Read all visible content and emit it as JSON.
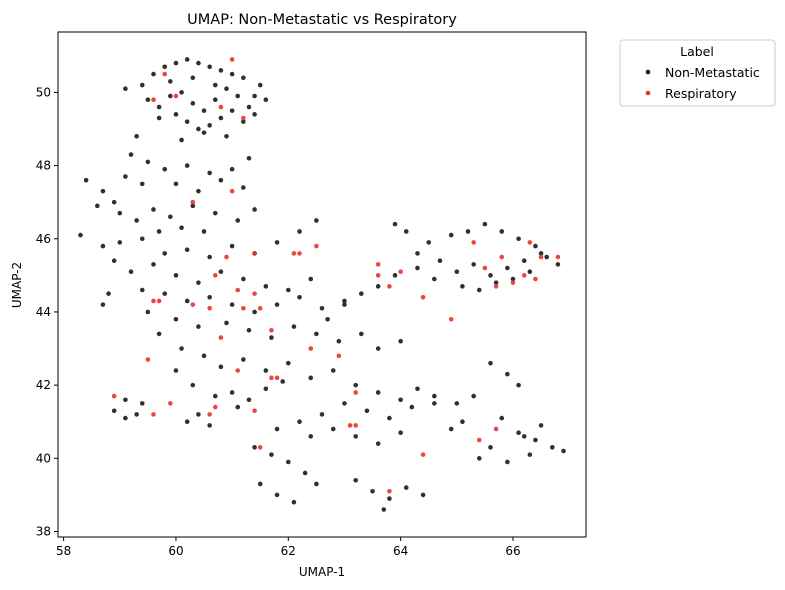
{
  "chart_data": {
    "type": "scatter",
    "title": "UMAP: Non-Metastatic vs Respiratory",
    "xlabel": "UMAP-1",
    "ylabel": "UMAP-2",
    "xlim": [
      57.9,
      67.3
    ],
    "ylim": [
      37.85,
      51.65
    ],
    "xticks": [
      58,
      60,
      62,
      64,
      66
    ],
    "yticks": [
      38,
      40,
      42,
      44,
      46,
      48,
      50
    ],
    "legend": {
      "title": "Label",
      "placement": "outside-top-right"
    },
    "grid": false,
    "series": [
      {
        "name": "Non-Metastatic",
        "color": "#1a1a1a",
        "points": [
          [
            59.4,
            50.2
          ],
          [
            59.6,
            50.5
          ],
          [
            59.8,
            50.7
          ],
          [
            60.0,
            50.8
          ],
          [
            60.2,
            50.9
          ],
          [
            60.4,
            50.8
          ],
          [
            60.6,
            50.7
          ],
          [
            60.8,
            50.6
          ],
          [
            61.0,
            50.5
          ],
          [
            61.2,
            50.4
          ],
          [
            59.5,
            49.8
          ],
          [
            59.7,
            49.6
          ],
          [
            59.9,
            49.9
          ],
          [
            60.1,
            50.0
          ],
          [
            60.3,
            49.7
          ],
          [
            60.5,
            49.5
          ],
          [
            60.7,
            49.8
          ],
          [
            60.9,
            50.1
          ],
          [
            61.1,
            49.9
          ],
          [
            61.3,
            49.6
          ],
          [
            59.7,
            49.3
          ],
          [
            60.0,
            49.4
          ],
          [
            60.2,
            49.2
          ],
          [
            60.4,
            49.0
          ],
          [
            60.6,
            49.1
          ],
          [
            60.8,
            49.3
          ],
          [
            61.0,
            49.5
          ],
          [
            61.2,
            49.2
          ],
          [
            61.4,
            49.4
          ],
          [
            59.3,
            48.8
          ],
          [
            60.1,
            48.7
          ],
          [
            60.5,
            48.9
          ],
          [
            60.9,
            48.8
          ],
          [
            61.5,
            50.2
          ],
          [
            59.1,
            50.1
          ],
          [
            61.4,
            49.9
          ],
          [
            60.3,
            50.4
          ],
          [
            59.9,
            50.3
          ],
          [
            60.7,
            50.2
          ],
          [
            61.6,
            49.8
          ],
          [
            59.2,
            48.3
          ],
          [
            59.5,
            48.1
          ],
          [
            59.8,
            47.9
          ],
          [
            60.2,
            48.0
          ],
          [
            60.6,
            47.8
          ],
          [
            61.0,
            47.9
          ],
          [
            61.3,
            48.2
          ],
          [
            59.1,
            47.7
          ],
          [
            59.4,
            47.5
          ],
          [
            60.0,
            47.5
          ],
          [
            60.4,
            47.3
          ],
          [
            60.8,
            47.6
          ],
          [
            61.2,
            47.4
          ],
          [
            58.4,
            47.6
          ],
          [
            58.7,
            47.3
          ],
          [
            58.9,
            47.0
          ],
          [
            58.6,
            46.9
          ],
          [
            59.0,
            46.7
          ],
          [
            59.3,
            46.5
          ],
          [
            59.6,
            46.8
          ],
          [
            59.9,
            46.6
          ],
          [
            60.3,
            46.9
          ],
          [
            60.7,
            46.7
          ],
          [
            61.1,
            46.5
          ],
          [
            61.4,
            46.8
          ],
          [
            60.1,
            46.3
          ],
          [
            60.5,
            46.2
          ],
          [
            59.7,
            46.2
          ],
          [
            58.3,
            46.1
          ],
          [
            58.7,
            45.8
          ],
          [
            59.0,
            45.9
          ],
          [
            59.4,
            46.0
          ],
          [
            59.8,
            45.6
          ],
          [
            60.2,
            45.7
          ],
          [
            60.6,
            45.5
          ],
          [
            61.0,
            45.8
          ],
          [
            61.4,
            45.6
          ],
          [
            61.8,
            45.9
          ],
          [
            62.2,
            46.2
          ],
          [
            62.5,
            46.5
          ],
          [
            58.9,
            45.4
          ],
          [
            59.2,
            45.1
          ],
          [
            59.6,
            45.3
          ],
          [
            60.0,
            45.0
          ],
          [
            60.4,
            44.8
          ],
          [
            60.8,
            45.1
          ],
          [
            61.2,
            44.9
          ],
          [
            61.6,
            44.7
          ],
          [
            62.0,
            44.6
          ],
          [
            62.4,
            44.9
          ],
          [
            59.4,
            44.6
          ],
          [
            59.8,
            44.5
          ],
          [
            60.2,
            44.3
          ],
          [
            60.6,
            44.4
          ],
          [
            61.0,
            44.2
          ],
          [
            61.4,
            44.0
          ],
          [
            61.8,
            44.2
          ],
          [
            62.2,
            44.4
          ],
          [
            62.6,
            44.1
          ],
          [
            63.0,
            44.3
          ],
          [
            58.8,
            44.5
          ],
          [
            58.7,
            44.2
          ],
          [
            59.5,
            44.0
          ],
          [
            60.0,
            43.8
          ],
          [
            60.4,
            43.6
          ],
          [
            60.9,
            43.7
          ],
          [
            61.3,
            43.5
          ],
          [
            61.7,
            43.3
          ],
          [
            62.1,
            43.6
          ],
          [
            62.5,
            43.4
          ],
          [
            62.9,
            43.2
          ],
          [
            63.3,
            43.4
          ],
          [
            63.6,
            43.0
          ],
          [
            64.0,
            43.2
          ],
          [
            59.7,
            43.4
          ],
          [
            60.1,
            43.0
          ],
          [
            60.5,
            42.8
          ],
          [
            60.8,
            42.5
          ],
          [
            61.2,
            42.7
          ],
          [
            61.6,
            42.4
          ],
          [
            62.0,
            42.6
          ],
          [
            62.4,
            42.2
          ],
          [
            62.8,
            42.4
          ],
          [
            63.2,
            42.0
          ],
          [
            63.6,
            41.8
          ],
          [
            64.0,
            41.6
          ],
          [
            64.3,
            41.9
          ],
          [
            64.6,
            41.7
          ],
          [
            63.0,
            41.5
          ],
          [
            63.4,
            41.3
          ],
          [
            63.8,
            41.1
          ],
          [
            64.2,
            41.4
          ],
          [
            62.6,
            41.2
          ],
          [
            62.2,
            41.0
          ],
          [
            61.8,
            40.8
          ],
          [
            62.4,
            40.6
          ],
          [
            62.8,
            40.8
          ],
          [
            63.2,
            40.6
          ],
          [
            63.6,
            40.4
          ],
          [
            64.0,
            40.7
          ],
          [
            61.4,
            40.3
          ],
          [
            61.7,
            40.1
          ],
          [
            62.0,
            39.9
          ],
          [
            62.3,
            39.6
          ],
          [
            62.5,
            39.3
          ],
          [
            61.5,
            39.3
          ],
          [
            61.8,
            39.0
          ],
          [
            62.1,
            38.8
          ],
          [
            63.2,
            39.4
          ],
          [
            63.5,
            39.1
          ],
          [
            63.8,
            38.9
          ],
          [
            64.1,
            39.2
          ],
          [
            64.4,
            39.0
          ],
          [
            63.7,
            38.6
          ],
          [
            60.0,
            42.4
          ],
          [
            60.3,
            42.0
          ],
          [
            60.7,
            41.7
          ],
          [
            61.1,
            41.4
          ],
          [
            60.4,
            41.2
          ],
          [
            60.6,
            40.9
          ],
          [
            58.9,
            41.3
          ],
          [
            59.1,
            41.6
          ],
          [
            59.3,
            41.2
          ],
          [
            59.4,
            41.5
          ],
          [
            59.1,
            41.1
          ],
          [
            60.2,
            41.0
          ],
          [
            61.0,
            41.8
          ],
          [
            61.3,
            41.6
          ],
          [
            61.6,
            41.9
          ],
          [
            61.9,
            42.1
          ],
          [
            64.3,
            45.6
          ],
          [
            64.7,
            45.4
          ],
          [
            65.0,
            45.1
          ],
          [
            65.3,
            45.3
          ],
          [
            65.6,
            45.0
          ],
          [
            65.9,
            45.2
          ],
          [
            66.2,
            45.4
          ],
          [
            66.5,
            45.6
          ],
          [
            66.8,
            45.3
          ],
          [
            64.5,
            45.9
          ],
          [
            64.9,
            46.1
          ],
          [
            65.2,
            46.2
          ],
          [
            65.5,
            46.4
          ],
          [
            65.8,
            46.2
          ],
          [
            66.1,
            46.0
          ],
          [
            66.4,
            45.8
          ],
          [
            66.6,
            45.5
          ],
          [
            65.1,
            44.7
          ],
          [
            65.4,
            44.6
          ],
          [
            65.7,
            44.8
          ],
          [
            66.0,
            44.9
          ],
          [
            66.3,
            45.1
          ],
          [
            64.6,
            44.9
          ],
          [
            64.3,
            45.2
          ],
          [
            63.9,
            45.0
          ],
          [
            63.6,
            44.7
          ],
          [
            63.3,
            44.5
          ],
          [
            63.0,
            44.2
          ],
          [
            63.9,
            46.4
          ],
          [
            64.1,
            46.2
          ],
          [
            65.6,
            42.6
          ],
          [
            65.9,
            42.3
          ],
          [
            66.1,
            42.0
          ],
          [
            65.3,
            41.7
          ],
          [
            65.0,
            41.5
          ],
          [
            65.8,
            41.1
          ],
          [
            66.1,
            40.7
          ],
          [
            66.4,
            40.5
          ],
          [
            66.7,
            40.3
          ],
          [
            66.9,
            40.2
          ],
          [
            66.5,
            40.9
          ],
          [
            66.2,
            40.6
          ],
          [
            65.6,
            40.3
          ],
          [
            65.4,
            40.0
          ],
          [
            65.9,
            39.9
          ],
          [
            66.3,
            40.1
          ],
          [
            64.9,
            40.8
          ],
          [
            64.6,
            41.5
          ],
          [
            65.1,
            41.0
          ],
          [
            62.7,
            43.8
          ]
        ]
      },
      {
        "name": "Respiratory",
        "color": "#e8332e",
        "points": [
          [
            59.8,
            50.5
          ],
          [
            61.0,
            50.9
          ],
          [
            59.6,
            49.8
          ],
          [
            60.0,
            49.9
          ],
          [
            60.8,
            49.6
          ],
          [
            61.2,
            49.3
          ],
          [
            61.0,
            47.3
          ],
          [
            60.3,
            47.0
          ],
          [
            60.9,
            45.5
          ],
          [
            61.4,
            45.6
          ],
          [
            60.7,
            45.0
          ],
          [
            62.2,
            45.6
          ],
          [
            62.5,
            45.8
          ],
          [
            61.1,
            44.6
          ],
          [
            61.4,
            44.5
          ],
          [
            60.3,
            44.2
          ],
          [
            60.6,
            44.1
          ],
          [
            61.2,
            44.1
          ],
          [
            61.5,
            44.1
          ],
          [
            60.8,
            43.3
          ],
          [
            61.7,
            43.5
          ],
          [
            62.4,
            43.0
          ],
          [
            62.9,
            42.8
          ],
          [
            61.1,
            42.4
          ],
          [
            61.8,
            42.2
          ],
          [
            59.6,
            44.3
          ],
          [
            59.7,
            44.3
          ],
          [
            59.5,
            42.7
          ],
          [
            58.9,
            41.7
          ],
          [
            59.6,
            41.2
          ],
          [
            59.9,
            41.5
          ],
          [
            60.6,
            41.2
          ],
          [
            60.7,
            41.4
          ],
          [
            61.4,
            41.3
          ],
          [
            61.5,
            40.3
          ],
          [
            63.2,
            41.8
          ],
          [
            63.2,
            40.9
          ],
          [
            63.8,
            39.1
          ],
          [
            64.4,
            40.1
          ],
          [
            63.6,
            45.3
          ],
          [
            63.6,
            45.0
          ],
          [
            63.8,
            44.7
          ],
          [
            64.0,
            45.1
          ],
          [
            64.4,
            44.4
          ],
          [
            64.9,
            43.8
          ],
          [
            65.3,
            45.9
          ],
          [
            65.5,
            45.2
          ],
          [
            65.8,
            45.5
          ],
          [
            65.7,
            44.7
          ],
          [
            66.0,
            44.8
          ],
          [
            66.2,
            45.0
          ],
          [
            66.3,
            45.9
          ],
          [
            66.5,
            45.5
          ],
          [
            66.4,
            44.9
          ],
          [
            66.8,
            45.5
          ],
          [
            65.7,
            40.8
          ],
          [
            65.4,
            40.5
          ],
          [
            61.7,
            42.2
          ],
          [
            63.1,
            40.9
          ],
          [
            62.1,
            45.6
          ]
        ]
      }
    ]
  }
}
